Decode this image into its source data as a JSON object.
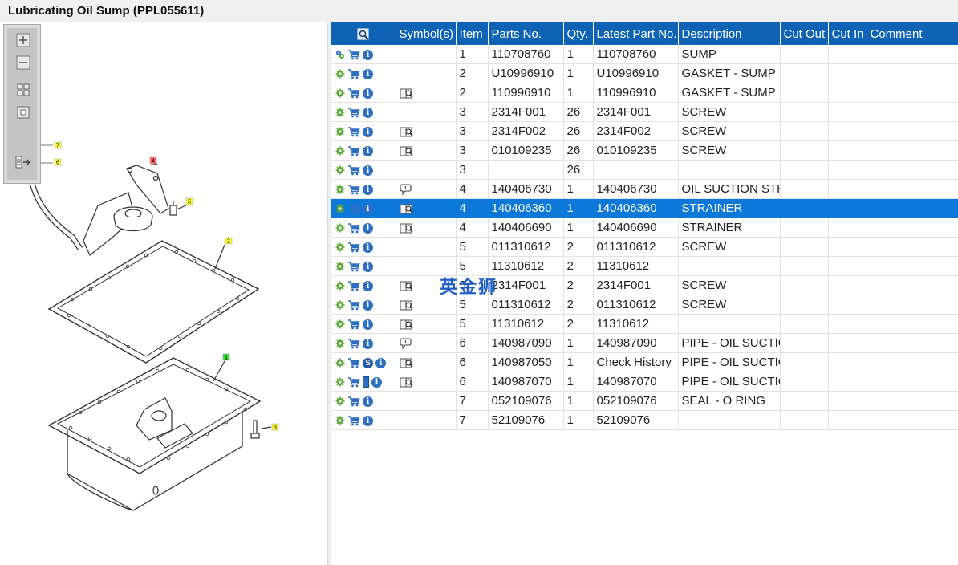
{
  "window": {
    "title": "Lubricating Oil Sump (PPL055611)"
  },
  "toolbox": {
    "buttons": [
      "zoom-in",
      "zoom-out",
      "fit-all",
      "fit-window",
      "show-list"
    ]
  },
  "diagram": {
    "callouts": [
      "7",
      "6",
      "4",
      "5",
      "2",
      "1",
      "3"
    ]
  },
  "table": {
    "columns": [
      "",
      "Symbol(s)",
      "Item",
      "Parts No.",
      "Qty.",
      "Latest Part No.",
      "Description",
      "Cut Out",
      "Cut In",
      "Comment"
    ],
    "rows": [
      {
        "icons": [
          "gear-group",
          "cart",
          "info"
        ],
        "symbol": "",
        "item": "1",
        "parts_no": "110708760",
        "qty": "1",
        "latest": "110708760",
        "desc": "SUMP",
        "cut_out": "",
        "cut_in": "",
        "comment": "",
        "selected": false
      },
      {
        "icons": [
          "gear",
          "cart",
          "info"
        ],
        "symbol": "",
        "item": "2",
        "parts_no": "U10996910",
        "qty": "1",
        "latest": "U10996910",
        "desc": "GASKET - SUMP",
        "cut_out": "",
        "cut_in": "",
        "comment": "",
        "selected": false
      },
      {
        "icons": [
          "gear",
          "cart",
          "info"
        ],
        "symbol": "book-magnifier",
        "item": "2",
        "parts_no": "110996910",
        "qty": "1",
        "latest": "110996910",
        "desc": "GASKET - SUMP",
        "cut_out": "",
        "cut_in": "",
        "comment": "",
        "selected": false
      },
      {
        "icons": [
          "gear",
          "cart",
          "info"
        ],
        "symbol": "",
        "item": "3",
        "parts_no": "2314F001",
        "qty": "26",
        "latest": "2314F001",
        "desc": "SCREW",
        "cut_out": "",
        "cut_in": "",
        "comment": "",
        "selected": false
      },
      {
        "icons": [
          "gear",
          "cart",
          "info"
        ],
        "symbol": "book-magnifier",
        "item": "3",
        "parts_no": "2314F002",
        "qty": "26",
        "latest": "2314F002",
        "desc": "SCREW",
        "cut_out": "",
        "cut_in": "",
        "comment": "",
        "selected": false
      },
      {
        "icons": [
          "gear",
          "cart",
          "info"
        ],
        "symbol": "book-magnifier",
        "item": "3",
        "parts_no": "010109235",
        "qty": "26",
        "latest": "010109235",
        "desc": "SCREW",
        "cut_out": "",
        "cut_in": "",
        "comment": "",
        "selected": false
      },
      {
        "icons": [
          "gear",
          "cart",
          "info"
        ],
        "symbol": "",
        "item": "3",
        "parts_no": "",
        "qty": "26",
        "latest": "",
        "desc": "",
        "cut_out": "",
        "cut_in": "",
        "comment": "",
        "selected": false
      },
      {
        "icons": [
          "gear",
          "cart",
          "info"
        ],
        "symbol": "pin",
        "item": "4",
        "parts_no": "140406730",
        "qty": "1",
        "latest": "140406730",
        "desc": "OIL SUCTION STRAINER",
        "cut_out": "",
        "cut_in": "",
        "comment": "",
        "selected": false
      },
      {
        "icons": [
          "gear",
          "cart",
          "info"
        ],
        "symbol": "book-magnifier",
        "item": "4",
        "parts_no": "140406360",
        "qty": "1",
        "latest": "140406360",
        "desc": "STRAINER",
        "cut_out": "",
        "cut_in": "",
        "comment": "",
        "selected": true
      },
      {
        "icons": [
          "gear",
          "cart",
          "info"
        ],
        "symbol": "book-magnifier",
        "item": "4",
        "parts_no": "140406690",
        "qty": "1",
        "latest": "140406690",
        "desc": "STRAINER",
        "cut_out": "",
        "cut_in": "",
        "comment": "",
        "selected": false
      },
      {
        "icons": [
          "gear",
          "cart",
          "info"
        ],
        "symbol": "",
        "item": "5",
        "parts_no": "011310612",
        "qty": "2",
        "latest": "011310612",
        "desc": "SCREW",
        "cut_out": "",
        "cut_in": "",
        "comment": "",
        "selected": false
      },
      {
        "icons": [
          "gear",
          "cart",
          "info"
        ],
        "symbol": "",
        "item": "5",
        "parts_no": "11310612",
        "qty": "2",
        "latest": "11310612",
        "desc": "",
        "cut_out": "",
        "cut_in": "",
        "comment": "",
        "selected": false
      },
      {
        "icons": [
          "gear",
          "cart",
          "info"
        ],
        "symbol": "book-magnifier",
        "item": "5",
        "parts_no": "2314F001",
        "qty": "2",
        "latest": "2314F001",
        "desc": "SCREW",
        "cut_out": "",
        "cut_in": "",
        "comment": "",
        "selected": false
      },
      {
        "icons": [
          "gear",
          "cart",
          "info"
        ],
        "symbol": "book-magnifier",
        "item": "5",
        "parts_no": "011310612",
        "qty": "2",
        "latest": "011310612",
        "desc": "SCREW",
        "cut_out": "",
        "cut_in": "",
        "comment": "",
        "selected": false
      },
      {
        "icons": [
          "gear",
          "cart",
          "info"
        ],
        "symbol": "book-magnifier",
        "item": "5",
        "parts_no": "11310612",
        "qty": "2",
        "latest": "11310612",
        "desc": "",
        "cut_out": "",
        "cut_in": "",
        "comment": "",
        "selected": false
      },
      {
        "icons": [
          "gear",
          "cart",
          "info"
        ],
        "symbol": "pin",
        "item": "6",
        "parts_no": "140987090",
        "qty": "1",
        "latest": "140987090",
        "desc": "PIPE - OIL SUCTION",
        "cut_out": "",
        "cut_in": "",
        "comment": "",
        "selected": false
      },
      {
        "icons": [
          "gear",
          "cart",
          "s-badge",
          "info"
        ],
        "symbol": "book-magnifier",
        "item": "6",
        "parts_no": "140987050",
        "qty": "1",
        "latest": "Check History",
        "desc": "PIPE - OIL SUCTION",
        "cut_out": "",
        "cut_in": "",
        "comment": "",
        "selected": false
      },
      {
        "icons": [
          "gear",
          "cart",
          "book",
          "info"
        ],
        "symbol": "book-magnifier",
        "item": "6",
        "parts_no": "140987070",
        "qty": "1",
        "latest": "140987070",
        "desc": "PIPE - OIL SUCTION",
        "cut_out": "",
        "cut_in": "",
        "comment": "",
        "selected": false
      },
      {
        "icons": [
          "gear",
          "cart",
          "info"
        ],
        "symbol": "",
        "item": "7",
        "parts_no": "052109076",
        "qty": "1",
        "latest": "052109076",
        "desc": "SEAL - O RING",
        "cut_out": "",
        "cut_in": "",
        "comment": "",
        "selected": false
      },
      {
        "icons": [
          "gear",
          "cart",
          "info"
        ],
        "symbol": "",
        "item": "7",
        "parts_no": "52109076",
        "qty": "1",
        "latest": "52109076",
        "desc": "",
        "cut_out": "",
        "cut_in": "",
        "comment": "",
        "selected": false
      }
    ]
  },
  "watermark": {
    "text": "英金狮"
  },
  "colors": {
    "header_bg": "#0e63b4",
    "selected_row": "#0e78d8",
    "gear": "#5aa832",
    "cart": "#2f6fc0",
    "callout_yellow": "#ffff33",
    "callout_red": "#ff6666",
    "callout_green": "#33dd33"
  }
}
